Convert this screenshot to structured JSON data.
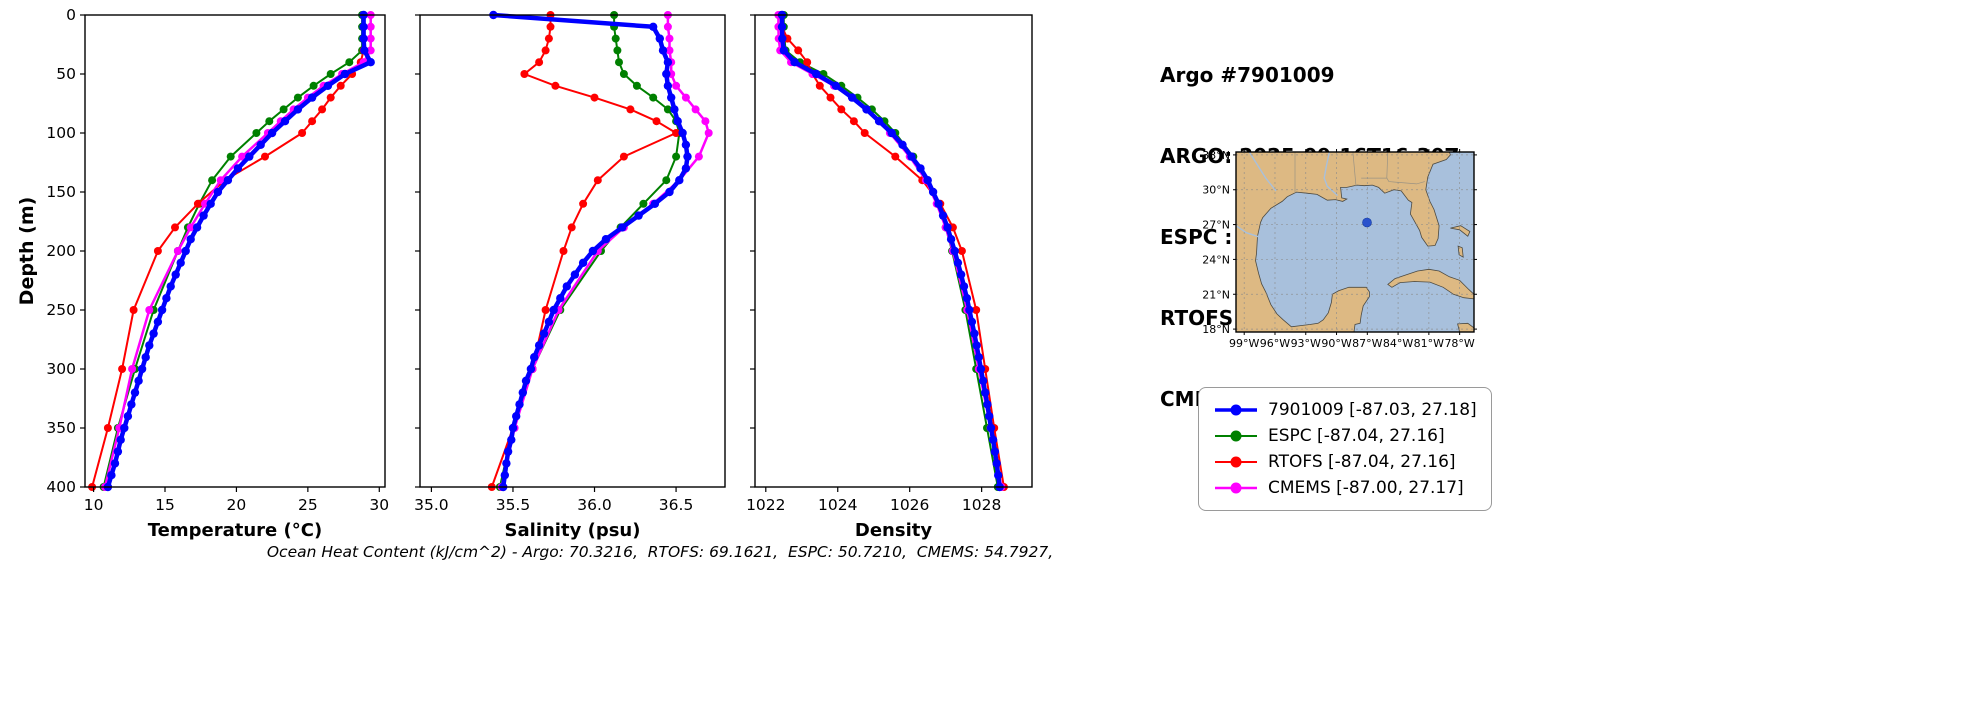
{
  "panel": {
    "title": "Argo #7901009",
    "lines": [
      "ARGO: 2025-09-16T16:30Z",
      "ESPC : 2025-09-16T18:00Z",
      "RTOFS: 2025-09-16T18:00Z",
      "CMEMS: 2025-09-16T18:00Z"
    ]
  },
  "caption": "Ocean Heat Content (kJ/cm^2) - Argo: 70.3216,  RTOFS: 69.1621,  ESPC: 50.7210,  CMEMS: 54.7927,",
  "legend": {
    "entries": [
      {
        "label": "7901009 [-87.03, 27.18]",
        "color": "#0000ff",
        "lw": 3.5
      },
      {
        "label": "ESPC [-87.04, 27.16]",
        "color": "#008000",
        "lw": 2
      },
      {
        "label": "RTOFS [-87.04, 27.16]",
        "color": "#ff0000",
        "lw": 2
      },
      {
        "label": "CMEMS [-87.00, 27.17]",
        "color": "#ff00ff",
        "lw": 2.5
      }
    ]
  },
  "map": {
    "lon_range": [
      -99.8,
      -76.6
    ],
    "lat_range": [
      17.75,
      33.25
    ],
    "lat_tick_vals": [
      33,
      30,
      27,
      24,
      21,
      18
    ],
    "lat_tick_labels": [
      "33°N",
      "30°N",
      "27°N",
      "24°N",
      "21°N",
      "18°N"
    ],
    "lon_tick_vals": [
      -99,
      -96,
      -93,
      -90,
      -87,
      -84,
      -81,
      -78
    ],
    "lon_tick_labels": [
      "99°W",
      "96°W",
      "93°W",
      "90°W",
      "87°W",
      "84°W",
      "81°W",
      "78°W"
    ],
    "float": {
      "lon": -87.03,
      "lat": 27.18
    },
    "colors": {
      "land": "#ddb983",
      "water": "#a8c0dc",
      "coast": "#4c4a42",
      "marker": "#2a52cc",
      "grid": "#8a8a8a"
    }
  },
  "chart_data": [
    {
      "type": "line",
      "xlabel": "Temperature (°C)",
      "ylabel": "Depth (m)",
      "xlim": [
        9.4,
        30.4
      ],
      "ylim": [
        0,
        400
      ],
      "xticks": [
        10,
        15,
        20,
        25,
        30
      ],
      "xtick_labels": [
        "10",
        "15",
        "20",
        "25",
        "30"
      ],
      "yticks": [
        0,
        50,
        100,
        150,
        200,
        250,
        300,
        350,
        400
      ],
      "ytick_labels": [
        "0",
        "50",
        "100",
        "150",
        "200",
        "250",
        "300",
        "350",
        "400"
      ],
      "series": [
        {
          "name": "ESPC",
          "color": "#008000",
          "lw": 2,
          "ms": 4,
          "depths": [
            0,
            10,
            20,
            30,
            40,
            50,
            60,
            70,
            80,
            90,
            100,
            120,
            140,
            160,
            180,
            200,
            250,
            300,
            350,
            400
          ],
          "values": [
            28.8,
            28.8,
            28.8,
            28.8,
            27.9,
            26.6,
            25.4,
            24.3,
            23.3,
            22.3,
            21.4,
            19.6,
            18.3,
            17.4,
            16.6,
            15.9,
            14.2,
            12.9,
            11.7,
            10.7
          ]
        },
        {
          "name": "RTOFS",
          "color": "#ff0000",
          "lw": 2,
          "ms": 4,
          "depths": [
            0,
            10,
            20,
            30,
            40,
            50,
            60,
            70,
            80,
            90,
            100,
            120,
            140,
            160,
            180,
            200,
            250,
            300,
            350,
            400
          ],
          "values": [
            28.9,
            28.9,
            28.9,
            28.9,
            28.7,
            28.1,
            27.3,
            26.6,
            26.0,
            25.3,
            24.6,
            22.0,
            19.2,
            17.3,
            15.7,
            14.5,
            12.8,
            12.0,
            11.0,
            9.9
          ]
        },
        {
          "name": "CMEMS",
          "color": "#ff00ff",
          "lw": 2.5,
          "ms": 4,
          "depths": [
            0,
            10,
            20,
            30,
            40,
            50,
            60,
            70,
            80,
            90,
            100,
            120,
            140,
            160,
            180,
            200,
            250,
            300,
            350,
            400
          ],
          "values": [
            29.4,
            29.4,
            29.4,
            29.4,
            28.9,
            27.4,
            26.1,
            25.0,
            24.0,
            23.1,
            22.2,
            20.4,
            18.9,
            17.8,
            16.8,
            15.9,
            13.9,
            12.7,
            11.8,
            10.8
          ]
        },
        {
          "name": "7901009",
          "color": "#0000ff",
          "lw": 4.5,
          "ms": 4.2,
          "depths": [
            0,
            10,
            20,
            30,
            40,
            50,
            60,
            70,
            80,
            90,
            100,
            110,
            120,
            130,
            140,
            150,
            160,
            170,
            180,
            190,
            200,
            210,
            220,
            230,
            240,
            250,
            260,
            270,
            280,
            290,
            300,
            310,
            320,
            330,
            340,
            350,
            360,
            370,
            380,
            390,
            400
          ],
          "values": [
            28.9,
            28.9,
            28.9,
            28.95,
            29.4,
            27.6,
            26.4,
            25.3,
            24.3,
            23.4,
            22.5,
            21.7,
            20.9,
            20.1,
            19.4,
            18.7,
            18.2,
            17.7,
            17.25,
            16.8,
            16.45,
            16.1,
            15.75,
            15.4,
            15.1,
            14.8,
            14.5,
            14.2,
            13.9,
            13.65,
            13.4,
            13.15,
            12.9,
            12.65,
            12.4,
            12.15,
            11.9,
            11.7,
            11.5,
            11.25,
            11.0
          ]
        }
      ]
    },
    {
      "type": "line",
      "xlabel": "Salinity (psu)",
      "ylabel": "Depth (m)",
      "xlim": [
        34.93,
        36.8
      ],
      "ylim": [
        0,
        400
      ],
      "xticks": [
        35.0,
        35.5,
        36.0,
        36.5
      ],
      "xtick_labels": [
        "35.0",
        "35.5",
        "36.0",
        "36.5"
      ],
      "yticks": [
        0,
        50,
        100,
        150,
        200,
        250,
        300,
        350,
        400
      ],
      "ytick_labels": [
        "0",
        "50",
        "100",
        "150",
        "200",
        "250",
        "300",
        "350",
        "400"
      ],
      "series": [
        {
          "name": "ESPC",
          "color": "#008000",
          "lw": 2,
          "ms": 4,
          "depths": [
            0,
            10,
            20,
            30,
            40,
            50,
            60,
            70,
            80,
            90,
            100,
            120,
            140,
            160,
            180,
            200,
            250,
            300,
            350,
            400
          ],
          "values": [
            36.12,
            36.12,
            36.13,
            36.14,
            36.15,
            36.18,
            36.26,
            36.36,
            36.45,
            36.5,
            36.52,
            36.5,
            36.44,
            36.3,
            36.16,
            36.04,
            35.79,
            35.62,
            35.5,
            35.42
          ]
        },
        {
          "name": "RTOFS",
          "color": "#ff0000",
          "lw": 2,
          "ms": 4,
          "depths": [
            0,
            10,
            20,
            30,
            40,
            50,
            60,
            70,
            80,
            90,
            100,
            120,
            140,
            160,
            180,
            200,
            250,
            300,
            350,
            400
          ],
          "values": [
            35.73,
            35.73,
            35.72,
            35.7,
            35.66,
            35.57,
            35.76,
            36.0,
            36.22,
            36.38,
            36.5,
            36.18,
            36.02,
            35.93,
            35.86,
            35.81,
            35.7,
            35.62,
            35.5,
            35.37
          ]
        },
        {
          "name": "CMEMS",
          "color": "#ff00ff",
          "lw": 2.5,
          "ms": 4,
          "depths": [
            0,
            10,
            20,
            30,
            40,
            50,
            60,
            70,
            80,
            90,
            100,
            120,
            140,
            160,
            180,
            200,
            250,
            300,
            350,
            400
          ],
          "values": [
            36.45,
            36.45,
            36.46,
            36.46,
            36.47,
            36.47,
            36.5,
            36.56,
            36.62,
            36.68,
            36.7,
            36.64,
            36.52,
            36.36,
            36.18,
            36.02,
            35.78,
            35.62,
            35.51,
            35.43
          ]
        },
        {
          "name": "7901009",
          "color": "#0000ff",
          "lw": 4.5,
          "ms": 4.2,
          "depths": [
            0,
            10,
            20,
            30,
            40,
            50,
            60,
            70,
            80,
            90,
            100,
            110,
            120,
            130,
            140,
            150,
            160,
            170,
            180,
            190,
            200,
            210,
            220,
            230,
            240,
            250,
            260,
            270,
            280,
            290,
            300,
            310,
            320,
            330,
            340,
            350,
            360,
            370,
            380,
            390,
            400
          ],
          "values": [
            35.38,
            36.36,
            36.4,
            36.42,
            36.45,
            36.44,
            36.45,
            36.47,
            36.49,
            36.51,
            36.54,
            36.56,
            36.57,
            36.56,
            36.52,
            36.46,
            36.37,
            36.27,
            36.17,
            36.07,
            35.99,
            35.93,
            35.88,
            35.83,
            35.79,
            35.75,
            35.72,
            35.69,
            35.66,
            35.63,
            35.61,
            35.58,
            35.56,
            35.54,
            35.52,
            35.5,
            35.49,
            35.47,
            35.46,
            35.45,
            35.44
          ]
        }
      ]
    },
    {
      "type": "line",
      "xlabel": "Density",
      "ylabel": "Depth (m)",
      "xlim": [
        1021.7,
        1029.4
      ],
      "ylim": [
        0,
        400
      ],
      "xticks": [
        1022,
        1024,
        1026,
        1028
      ],
      "xtick_labels": [
        "1022",
        "1024",
        "1026",
        "1028"
      ],
      "yticks": [
        0,
        50,
        100,
        150,
        200,
        250,
        300,
        350,
        400
      ],
      "ytick_labels": [
        "0",
        "50",
        "100",
        "150",
        "200",
        "250",
        "300",
        "350",
        "400"
      ],
      "series": [
        {
          "name": "ESPC",
          "color": "#008000",
          "lw": 2,
          "ms": 4,
          "depths": [
            0,
            10,
            20,
            30,
            40,
            50,
            60,
            70,
            80,
            90,
            100,
            120,
            140,
            160,
            180,
            200,
            250,
            300,
            350,
            400
          ],
          "values": [
            1022.5,
            1022.5,
            1022.52,
            1022.55,
            1022.95,
            1023.6,
            1024.1,
            1024.55,
            1024.95,
            1025.3,
            1025.6,
            1026.1,
            1026.5,
            1026.78,
            1027.0,
            1027.18,
            1027.55,
            1027.85,
            1028.15,
            1028.45
          ]
        },
        {
          "name": "RTOFS",
          "color": "#ff0000",
          "lw": 2,
          "ms": 4,
          "depths": [
            0,
            10,
            20,
            30,
            40,
            50,
            60,
            70,
            80,
            90,
            100,
            120,
            140,
            160,
            180,
            200,
            250,
            300,
            350,
            400
          ],
          "values": [
            1022.42,
            1022.45,
            1022.6,
            1022.9,
            1023.15,
            1023.3,
            1023.5,
            1023.8,
            1024.1,
            1024.45,
            1024.75,
            1025.6,
            1026.35,
            1026.85,
            1027.2,
            1027.45,
            1027.85,
            1028.1,
            1028.35,
            1028.62
          ]
        },
        {
          "name": "CMEMS",
          "color": "#ff00ff",
          "lw": 2.5,
          "ms": 4,
          "depths": [
            0,
            10,
            20,
            30,
            40,
            50,
            60,
            70,
            80,
            90,
            100,
            120,
            140,
            160,
            180,
            200,
            250,
            300,
            350,
            400
          ],
          "values": [
            1022.35,
            1022.35,
            1022.36,
            1022.4,
            1022.7,
            1023.3,
            1023.9,
            1024.4,
            1024.8,
            1025.15,
            1025.45,
            1026.0,
            1026.45,
            1026.75,
            1027.0,
            1027.2,
            1027.6,
            1027.92,
            1028.25,
            1028.55
          ]
        },
        {
          "name": "7901009",
          "color": "#0000ff",
          "lw": 4.5,
          "ms": 4.2,
          "depths": [
            0,
            10,
            20,
            30,
            40,
            50,
            60,
            70,
            80,
            90,
            100,
            110,
            120,
            130,
            140,
            150,
            160,
            170,
            180,
            190,
            200,
            210,
            220,
            230,
            240,
            250,
            260,
            270,
            280,
            290,
            300,
            310,
            320,
            330,
            340,
            350,
            360,
            370,
            380,
            390,
            400
          ],
          "values": [
            1022.45,
            1022.45,
            1022.46,
            1022.5,
            1022.8,
            1023.4,
            1023.95,
            1024.4,
            1024.8,
            1025.15,
            1025.5,
            1025.8,
            1026.05,
            1026.3,
            1026.5,
            1026.65,
            1026.8,
            1026.93,
            1027.05,
            1027.15,
            1027.25,
            1027.34,
            1027.43,
            1027.51,
            1027.59,
            1027.66,
            1027.73,
            1027.8,
            1027.86,
            1027.92,
            1027.98,
            1028.04,
            1028.1,
            1028.16,
            1028.21,
            1028.26,
            1028.32,
            1028.37,
            1028.42,
            1028.46,
            1028.5
          ]
        }
      ]
    }
  ]
}
